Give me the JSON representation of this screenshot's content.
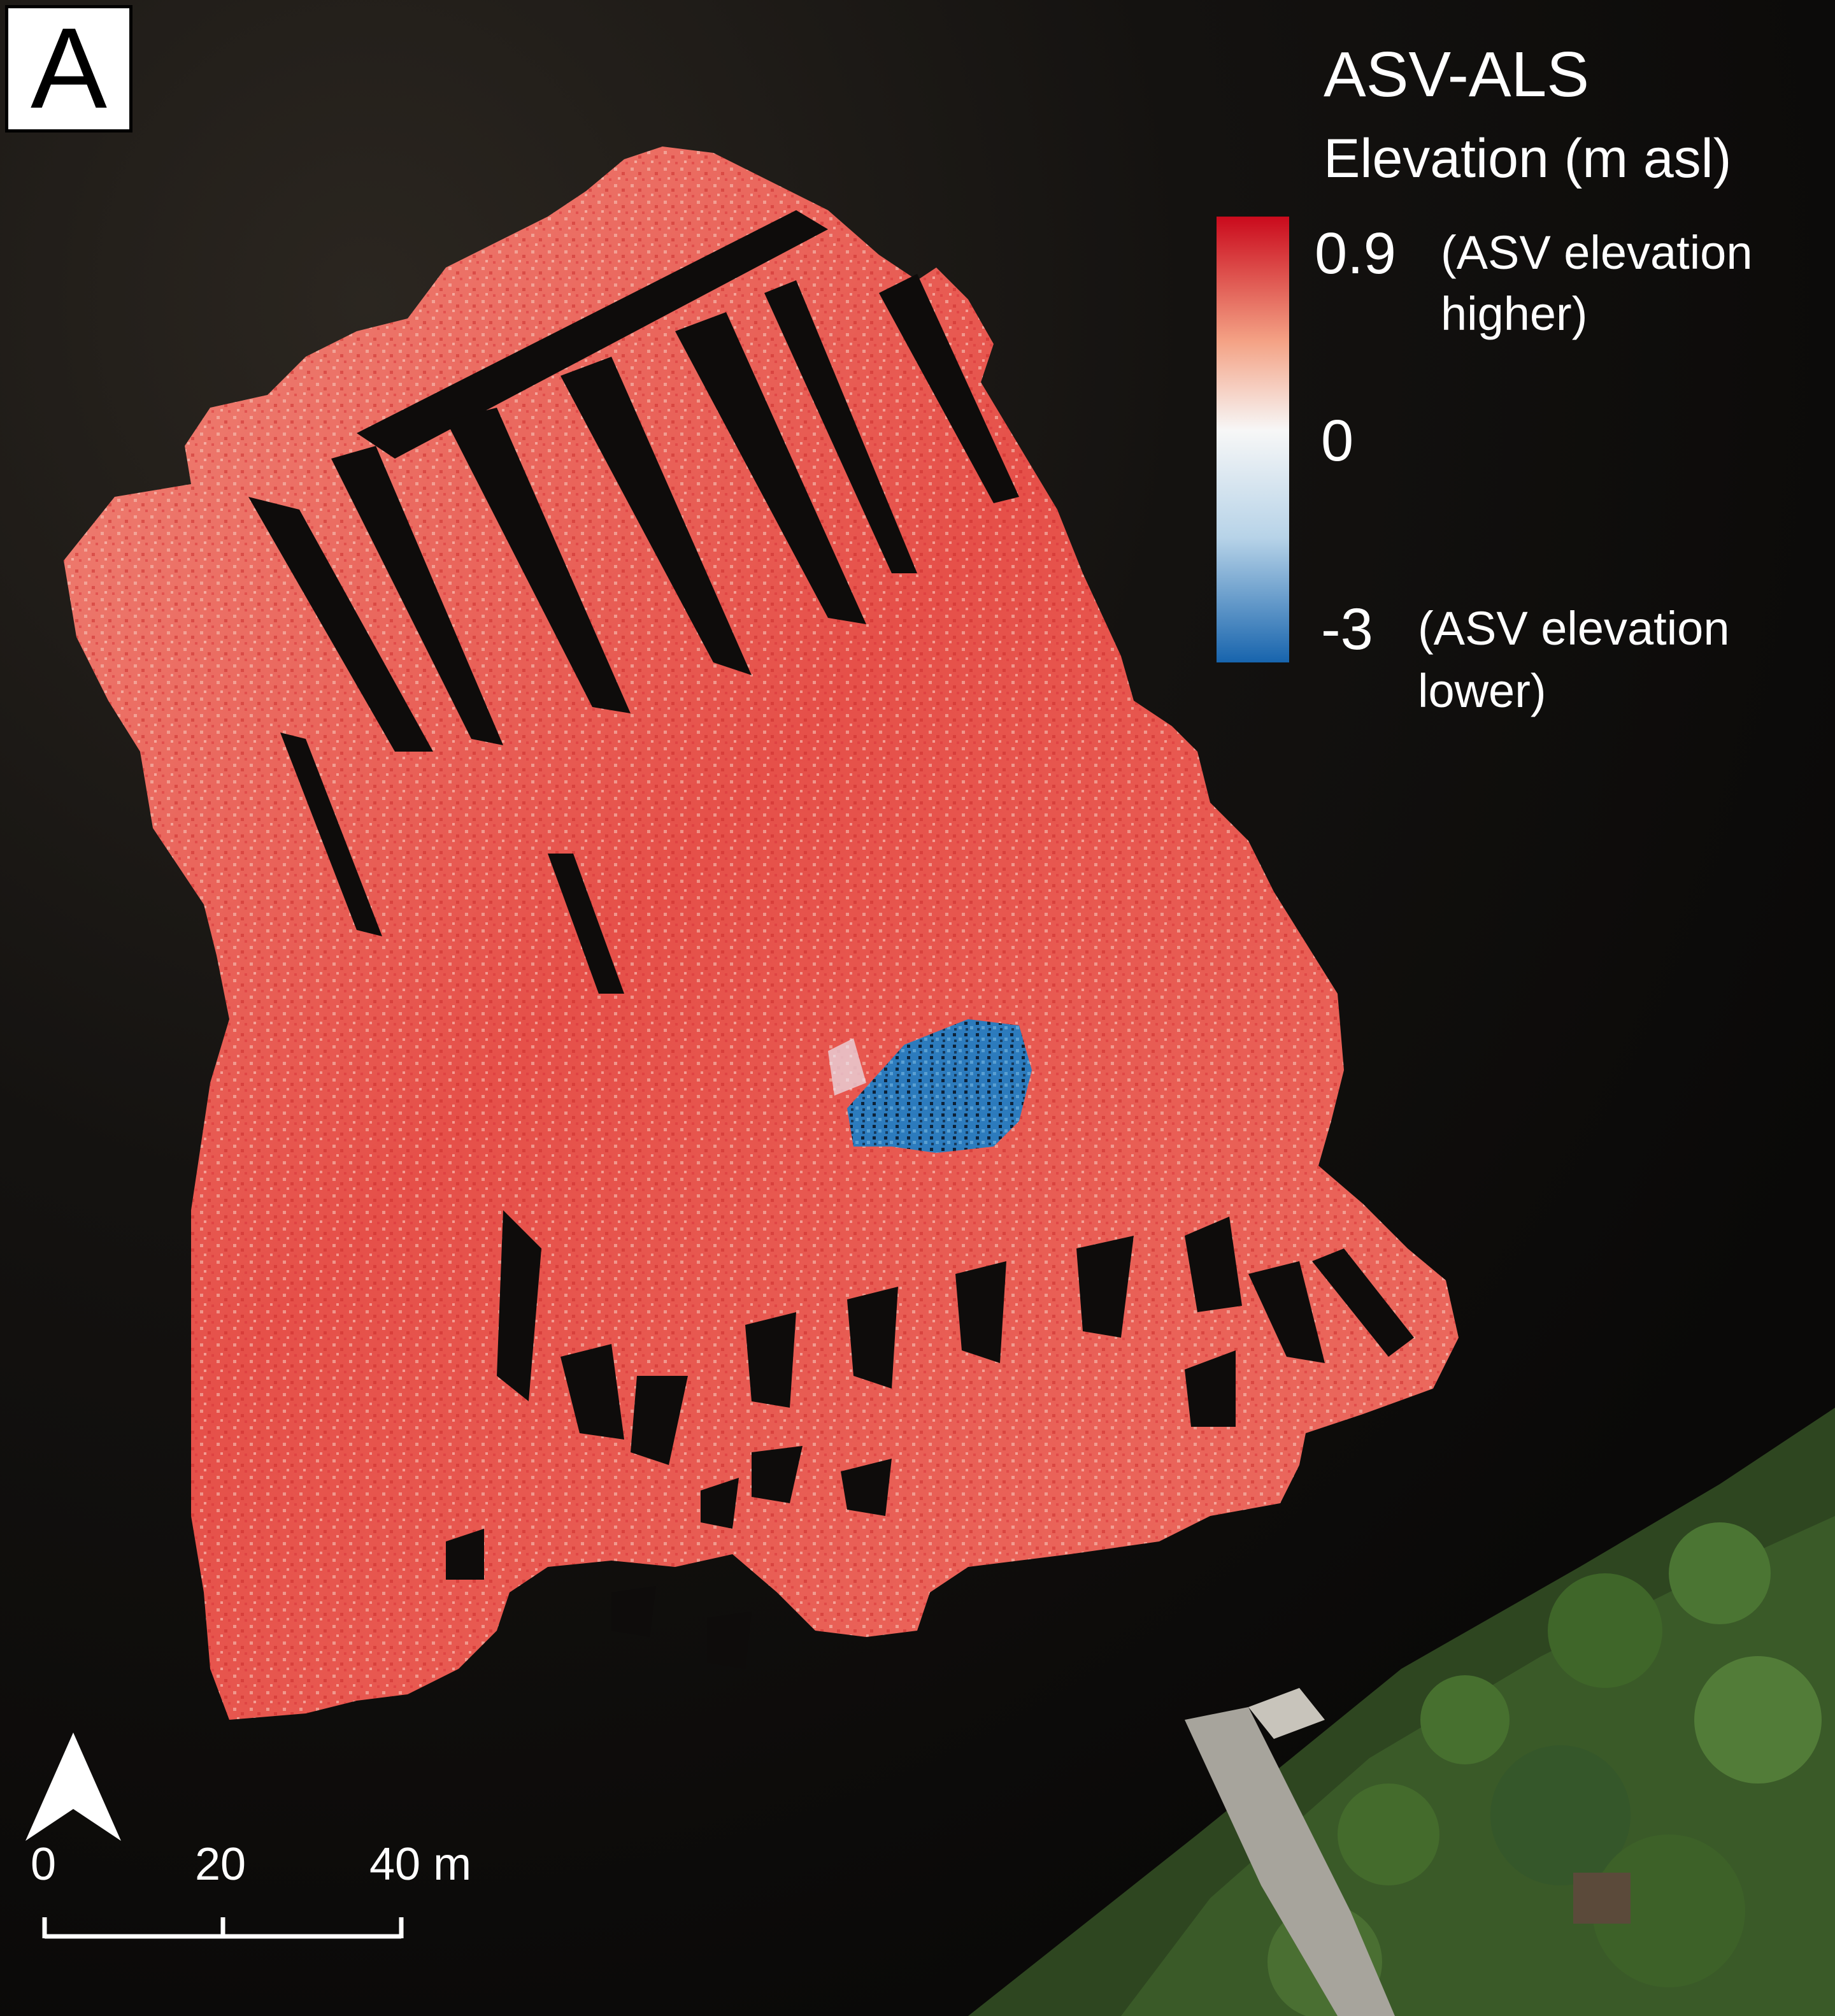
{
  "panel_label": "A",
  "legend": {
    "title": "ASV-ALS",
    "subtitle": "Elevation (m asl)",
    "max_value": "0.9",
    "mid_value": "0",
    "min_value": "-3",
    "max_note_line1": "(ASV elevation",
    "max_note_line2": "higher)",
    "min_note_line1": "(ASV elevation",
    "min_note_line2": "lower)",
    "colors": {
      "high": "#d7141e",
      "mid": "#f7f7f7",
      "low": "#1f6fb5"
    }
  },
  "scale_bar": {
    "labels": [
      "0",
      "20",
      "40 m"
    ]
  },
  "north_arrow": {
    "icon": "north-arrow-icon"
  },
  "colors": {
    "water": "#100e0c",
    "survey_fill": "#e8514d",
    "survey_light": "#f2a08f",
    "negative_patch": "#2a78b8",
    "vegetation": "#2f4a22",
    "road": "#9e9a93"
  }
}
